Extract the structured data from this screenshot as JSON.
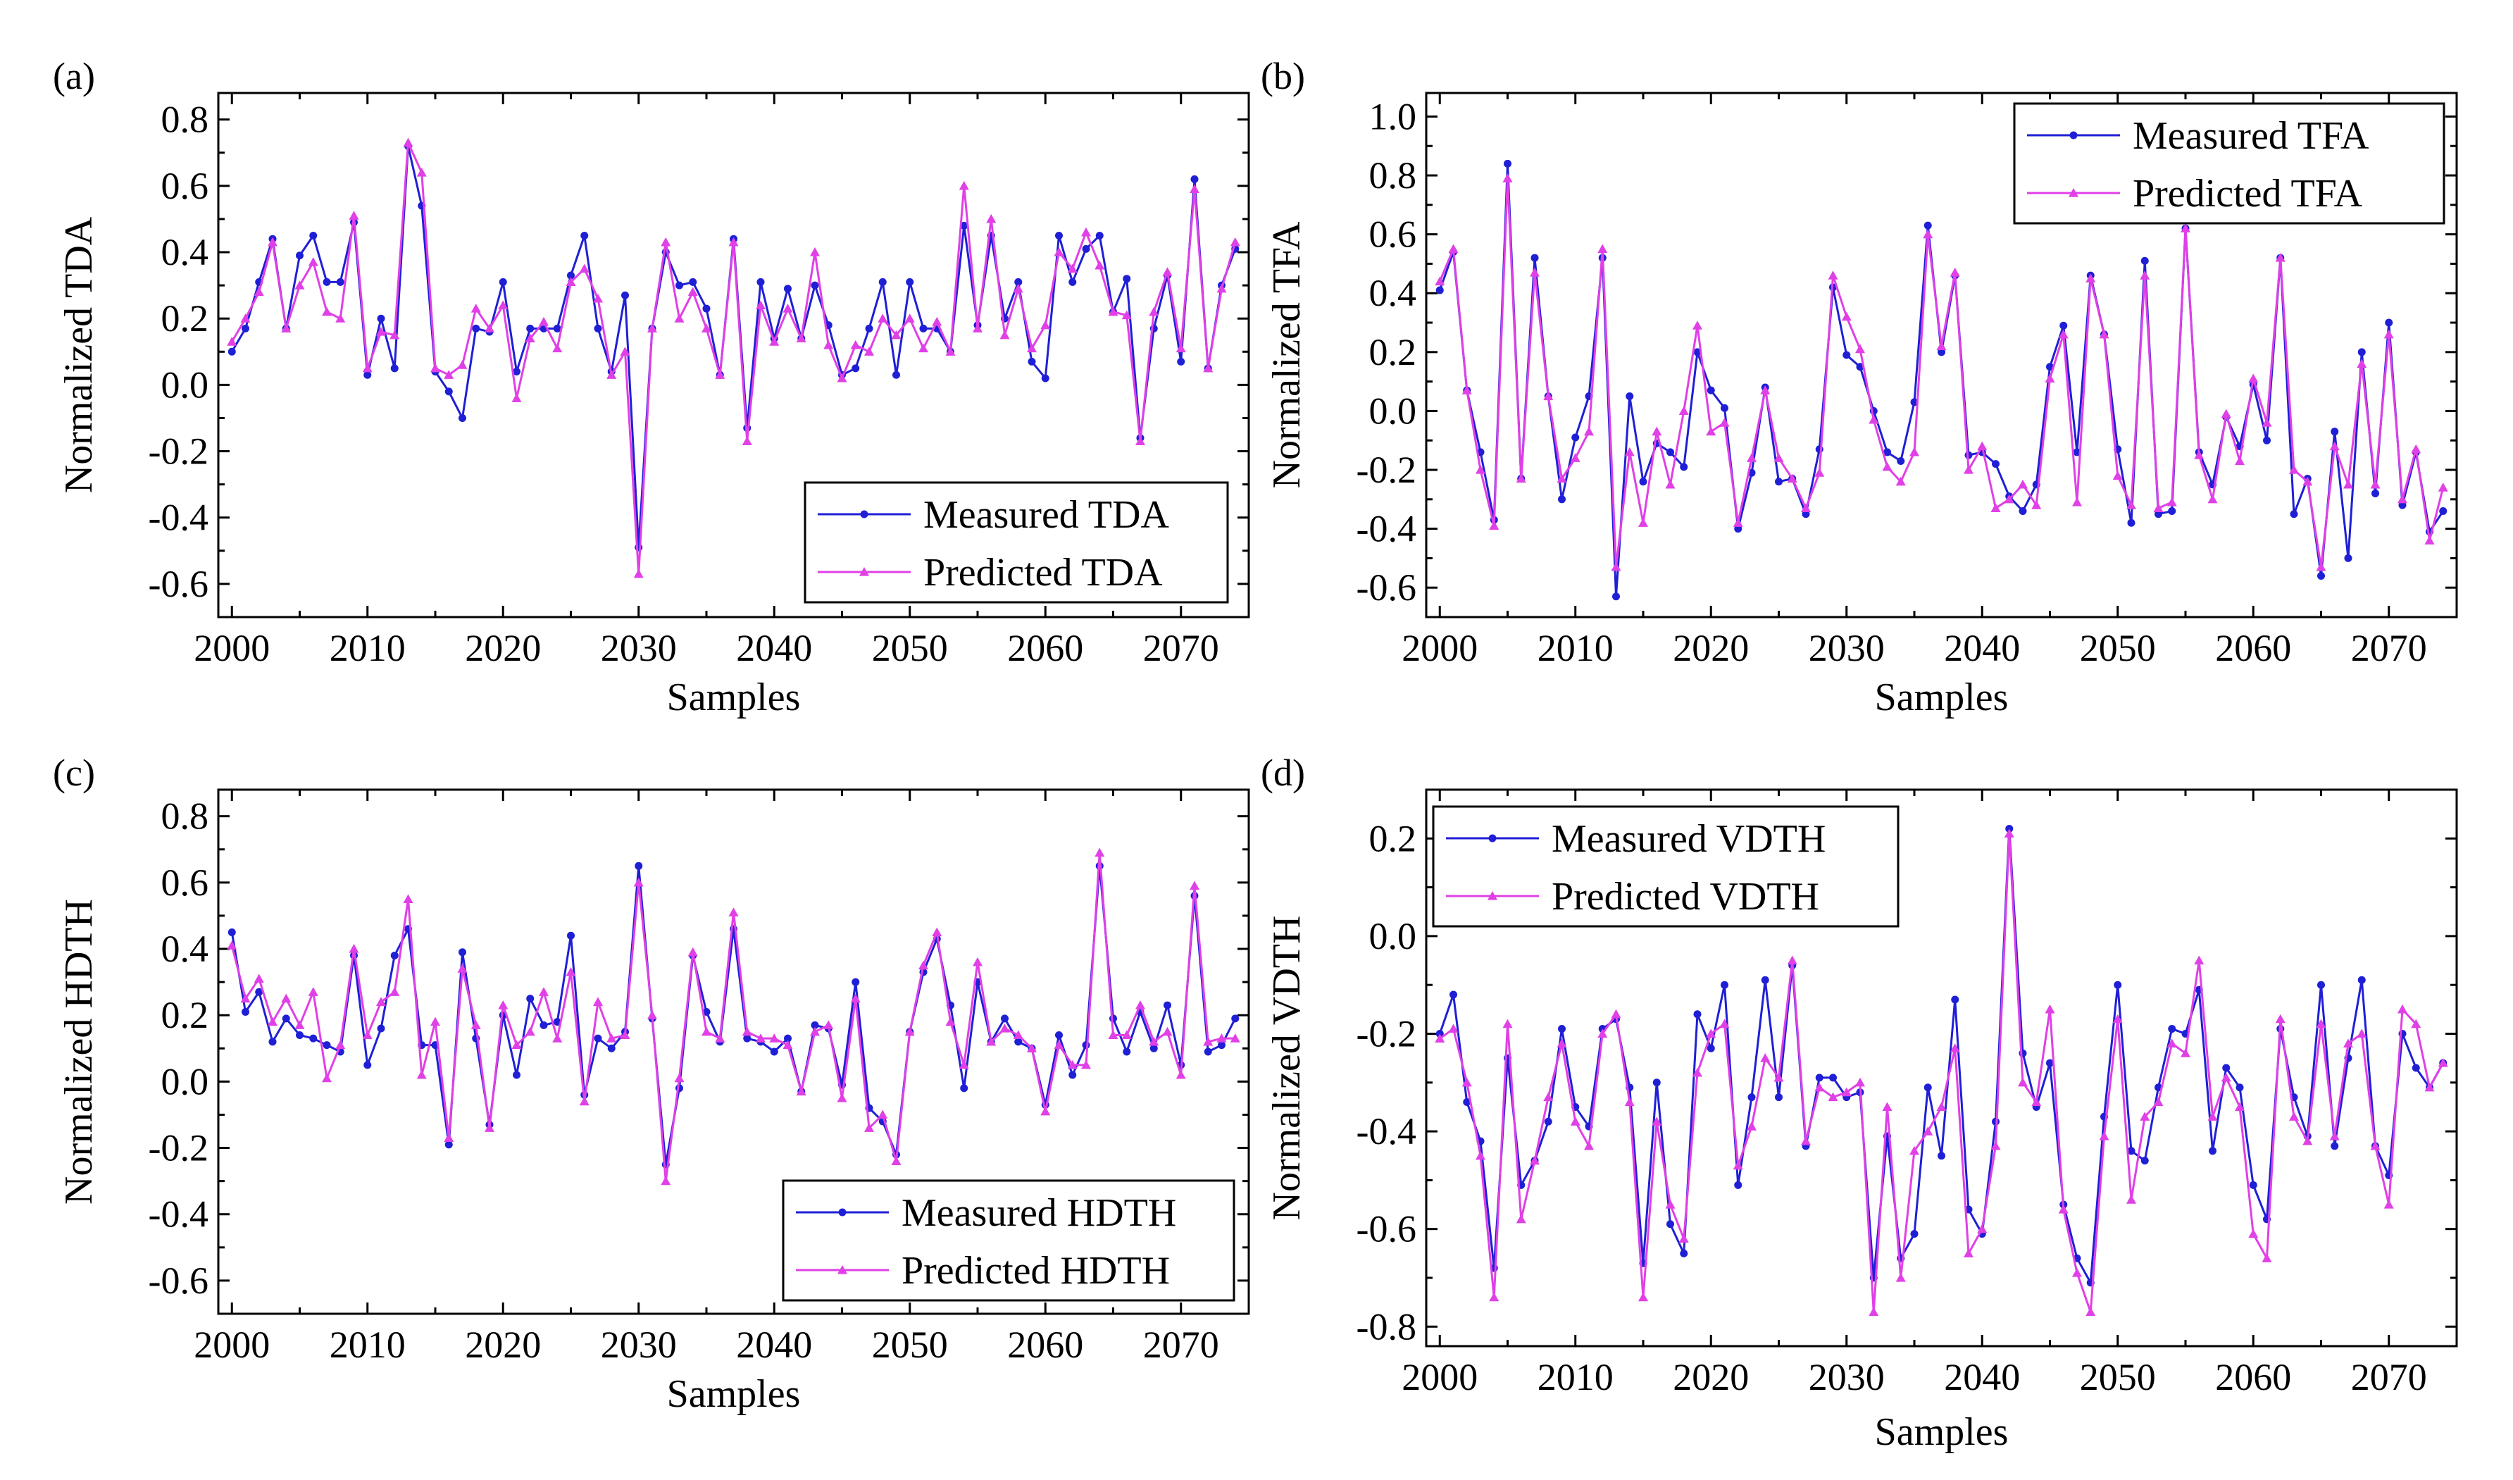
{
  "figure": {
    "colors": {
      "measured": "#1f1fd6",
      "predicted": "#e040e6"
    },
    "x_axis_title": "Samples"
  },
  "chart_data": [
    {
      "id": "a",
      "type": "line",
      "panel_label": "(a)",
      "title": "",
      "xlabel": "Samples",
      "ylabel": "Normalized TDA",
      "xlim": [
        1999,
        2075
      ],
      "ylim": [
        -0.7,
        0.88
      ],
      "xticks": [
        2000,
        2010,
        2020,
        2030,
        2040,
        2050,
        2060,
        2070
      ],
      "xtick_labels": [
        "2000",
        "2010",
        "2020",
        "2030",
        "2040",
        "2050",
        "2060",
        "2070"
      ],
      "yticks": [
        -0.6,
        -0.4,
        -0.2,
        0.0,
        0.2,
        0.4,
        0.6,
        0.8
      ],
      "ytick_labels": [
        "-0.6",
        "-0.4",
        "-0.2",
        "0.0",
        "0.2",
        "0.4",
        "0.6",
        "0.8"
      ],
      "legend_position": "bottom-right",
      "x_start": 2000,
      "series": [
        {
          "name": "Measured TDA",
          "marker": "circle",
          "values": [
            0.1,
            0.17,
            0.31,
            0.44,
            0.17,
            0.39,
            0.45,
            0.31,
            0.31,
            0.49,
            0.03,
            0.2,
            0.05,
            0.72,
            0.54,
            0.04,
            -0.02,
            -0.1,
            0.17,
            0.16,
            0.31,
            0.04,
            0.17,
            0.17,
            0.17,
            0.33,
            0.45,
            0.17,
            0.04,
            0.27,
            -0.49,
            0.17,
            0.4,
            0.3,
            0.31,
            0.23,
            0.03,
            0.44,
            -0.13,
            0.31,
            0.14,
            0.29,
            0.14,
            0.3,
            0.18,
            0.03,
            0.05,
            0.17,
            0.31,
            0.03,
            0.31,
            0.17,
            0.17,
            0.1,
            0.48,
            0.18,
            0.45,
            0.2,
            0.31,
            0.07,
            0.02,
            0.45,
            0.31,
            0.41,
            0.45,
            0.22,
            0.32,
            -0.16,
            0.17,
            0.33,
            0.07,
            0.62,
            0.05,
            0.3,
            0.41
          ]
        },
        {
          "name": "Predicted TDA",
          "marker": "triangle",
          "values": [
            0.13,
            0.2,
            0.28,
            0.43,
            0.17,
            0.3,
            0.37,
            0.22,
            0.2,
            0.51,
            0.05,
            0.16,
            0.15,
            0.73,
            0.64,
            0.05,
            0.03,
            0.06,
            0.23,
            0.17,
            0.24,
            -0.04,
            0.14,
            0.19,
            0.11,
            0.31,
            0.35,
            0.26,
            0.03,
            0.1,
            -0.57,
            0.17,
            0.43,
            0.2,
            0.28,
            0.17,
            0.03,
            0.43,
            -0.17,
            0.24,
            0.13,
            0.23,
            0.14,
            0.4,
            0.12,
            0.02,
            0.12,
            0.1,
            0.2,
            0.15,
            0.2,
            0.11,
            0.19,
            0.1,
            0.6,
            0.17,
            0.5,
            0.15,
            0.29,
            0.11,
            0.18,
            0.4,
            0.35,
            0.46,
            0.36,
            0.22,
            0.21,
            -0.17,
            0.22,
            0.34,
            0.11,
            0.59,
            0.05,
            0.29,
            0.43
          ]
        }
      ]
    },
    {
      "id": "b",
      "type": "line",
      "panel_label": "(b)",
      "title": "",
      "xlabel": "Samples",
      "ylabel": "Normalized TFA",
      "xlim": [
        1999,
        2075
      ],
      "ylim": [
        -0.7,
        1.08
      ],
      "xticks": [
        2000,
        2010,
        2020,
        2030,
        2040,
        2050,
        2060,
        2070
      ],
      "xtick_labels": [
        "2000",
        "2010",
        "2020",
        "2030",
        "2040",
        "2050",
        "2060",
        "2070"
      ],
      "yticks": [
        -0.6,
        -0.4,
        -0.2,
        0.0,
        0.2,
        0.4,
        0.6,
        0.8,
        1.0
      ],
      "ytick_labels": [
        "-0.6",
        "-0.4",
        "-0.2",
        "0.0",
        "0.2",
        "0.4",
        "0.6",
        "0.8",
        "1.0"
      ],
      "legend_position": "top-right",
      "x_start": 2000,
      "series": [
        {
          "name": "Measured TFA",
          "marker": "circle",
          "values": [
            0.41,
            0.54,
            0.07,
            -0.14,
            -0.37,
            0.84,
            -0.23,
            0.52,
            0.05,
            -0.3,
            -0.09,
            0.05,
            0.52,
            -0.63,
            0.05,
            -0.24,
            -0.11,
            -0.14,
            -0.19,
            0.2,
            0.07,
            0.01,
            -0.4,
            -0.21,
            0.08,
            -0.24,
            -0.23,
            -0.35,
            -0.13,
            0.42,
            0.19,
            0.15,
            0.0,
            -0.14,
            -0.17,
            0.03,
            0.63,
            0.2,
            0.46,
            -0.15,
            -0.14,
            -0.18,
            -0.29,
            -0.34,
            -0.25,
            0.15,
            0.29,
            -0.14,
            0.46,
            0.26,
            -0.13,
            -0.38,
            0.51,
            -0.35,
            -0.34,
            0.62,
            -0.14,
            -0.25,
            -0.02,
            -0.12,
            0.09,
            -0.1,
            0.52,
            -0.35,
            -0.23,
            -0.56,
            -0.07,
            -0.5,
            0.2,
            -0.28,
            0.3,
            -0.32,
            -0.14,
            -0.41,
            -0.34
          ]
        },
        {
          "name": "Predicted TFA",
          "marker": "triangle",
          "values": [
            0.44,
            0.55,
            0.07,
            -0.2,
            -0.39,
            0.79,
            -0.23,
            0.47,
            0.05,
            -0.23,
            -0.16,
            -0.07,
            0.55,
            -0.53,
            -0.14,
            -0.38,
            -0.07,
            -0.25,
            0.0,
            0.29,
            -0.07,
            -0.04,
            -0.38,
            -0.16,
            0.07,
            -0.16,
            -0.23,
            -0.33,
            -0.21,
            0.46,
            0.32,
            0.21,
            -0.03,
            -0.19,
            -0.24,
            -0.14,
            0.6,
            0.22,
            0.47,
            -0.2,
            -0.12,
            -0.33,
            -0.3,
            -0.25,
            -0.32,
            0.11,
            0.26,
            -0.31,
            0.45,
            0.26,
            -0.22,
            -0.32,
            0.46,
            -0.33,
            -0.31,
            0.62,
            -0.15,
            -0.3,
            -0.01,
            -0.17,
            0.11,
            -0.04,
            0.52,
            -0.2,
            -0.24,
            -0.53,
            -0.12,
            -0.25,
            0.16,
            -0.25,
            0.26,
            -0.3,
            -0.13,
            -0.44,
            -0.26
          ]
        }
      ]
    },
    {
      "id": "c",
      "type": "line",
      "panel_label": "(c)",
      "title": "",
      "xlabel": "Samples",
      "ylabel": "Normalized HDTH",
      "xlim": [
        1999,
        2075
      ],
      "ylim": [
        -0.7,
        0.88
      ],
      "xticks": [
        2000,
        2010,
        2020,
        2030,
        2040,
        2050,
        2060,
        2070
      ],
      "xtick_labels": [
        "2000",
        "2010",
        "2020",
        "2030",
        "2040",
        "2050",
        "2060",
        "2070"
      ],
      "yticks": [
        -0.6,
        -0.4,
        -0.2,
        0.0,
        0.2,
        0.4,
        0.6,
        0.8
      ],
      "ytick_labels": [
        "-0.6",
        "-0.4",
        "-0.2",
        "0.0",
        "0.2",
        "0.4",
        "0.6",
        "0.8"
      ],
      "legend_position": "bottom-right",
      "x_start": 2000,
      "series": [
        {
          "name": "Measured HDTH",
          "marker": "circle",
          "values": [
            0.45,
            0.21,
            0.27,
            0.12,
            0.19,
            0.14,
            0.13,
            0.11,
            0.09,
            0.38,
            0.05,
            0.16,
            0.38,
            0.46,
            0.11,
            0.11,
            -0.19,
            0.39,
            0.13,
            -0.13,
            0.2,
            0.02,
            0.25,
            0.17,
            0.18,
            0.44,
            -0.04,
            0.13,
            0.1,
            0.15,
            0.65,
            0.19,
            -0.25,
            -0.02,
            0.38,
            0.21,
            0.12,
            0.46,
            0.13,
            0.12,
            0.09,
            0.13,
            -0.03,
            0.17,
            0.16,
            -0.01,
            0.3,
            -0.08,
            -0.12,
            -0.22,
            0.15,
            0.33,
            0.43,
            0.23,
            -0.02,
            0.3,
            0.12,
            0.19,
            0.12,
            0.1,
            -0.07,
            0.14,
            0.02,
            0.11,
            0.65,
            0.19,
            0.09,
            0.21,
            0.1,
            0.23,
            0.05,
            0.56,
            0.09,
            0.11,
            0.19
          ]
        },
        {
          "name": "Predicted HDTH",
          "marker": "triangle",
          "values": [
            0.41,
            0.25,
            0.31,
            0.18,
            0.25,
            0.17,
            0.27,
            0.01,
            0.11,
            0.4,
            0.14,
            0.24,
            0.27,
            0.55,
            0.02,
            0.18,
            -0.17,
            0.34,
            0.17,
            -0.14,
            0.23,
            0.11,
            0.15,
            0.27,
            0.13,
            0.33,
            -0.06,
            0.24,
            0.13,
            0.14,
            0.6,
            0.2,
            -0.3,
            0.01,
            0.39,
            0.15,
            0.13,
            0.51,
            0.15,
            0.13,
            0.13,
            0.11,
            -0.03,
            0.15,
            0.17,
            -0.05,
            0.25,
            -0.14,
            -0.1,
            -0.24,
            0.15,
            0.35,
            0.45,
            0.18,
            0.05,
            0.36,
            0.12,
            0.16,
            0.14,
            0.1,
            -0.09,
            0.11,
            0.05,
            0.05,
            0.69,
            0.14,
            0.14,
            0.23,
            0.12,
            0.15,
            0.02,
            0.59,
            0.12,
            0.13,
            0.13
          ]
        }
      ]
    },
    {
      "id": "d",
      "type": "line",
      "panel_label": "(d)",
      "title": "",
      "xlabel": "Samples",
      "ylabel": "Normalized VDTH",
      "xlim": [
        1999,
        2075
      ],
      "ylim": [
        -0.84,
        0.3
      ],
      "xticks": [
        2000,
        2010,
        2020,
        2030,
        2040,
        2050,
        2060,
        2070
      ],
      "xtick_labels": [
        "2000",
        "2010",
        "2020",
        "2030",
        "2040",
        "2050",
        "2060",
        "2070"
      ],
      "yticks": [
        -0.8,
        -0.6,
        -0.4,
        -0.2,
        0.0,
        0.2
      ],
      "ytick_labels": [
        "-0.8",
        "-0.6",
        "-0.4",
        "-0.2",
        "0.0",
        "0.2"
      ],
      "legend_position": "top-left",
      "x_start": 2000,
      "series": [
        {
          "name": "Measured VDTH",
          "marker": "circle",
          "values": [
            -0.2,
            -0.12,
            -0.34,
            -0.42,
            -0.68,
            -0.25,
            -0.51,
            -0.46,
            -0.38,
            -0.19,
            -0.35,
            -0.39,
            -0.19,
            -0.17,
            -0.31,
            -0.67,
            -0.3,
            -0.59,
            -0.65,
            -0.16,
            -0.23,
            -0.1,
            -0.51,
            -0.33,
            -0.09,
            -0.33,
            -0.06,
            -0.43,
            -0.29,
            -0.29,
            -0.33,
            -0.32,
            -0.7,
            -0.41,
            -0.66,
            -0.61,
            -0.31,
            -0.45,
            -0.13,
            -0.56,
            -0.61,
            -0.38,
            0.22,
            -0.24,
            -0.35,
            -0.26,
            -0.55,
            -0.66,
            -0.71,
            -0.37,
            -0.1,
            -0.44,
            -0.46,
            -0.31,
            -0.19,
            -0.2,
            -0.11,
            -0.44,
            -0.27,
            -0.31,
            -0.51,
            -0.58,
            -0.19,
            -0.33,
            -0.41,
            -0.1,
            -0.43,
            -0.25,
            -0.09,
            -0.43,
            -0.49,
            -0.2,
            -0.27,
            -0.31,
            -0.26
          ]
        },
        {
          "name": "Predicted VDTH",
          "marker": "triangle",
          "values": [
            -0.21,
            -0.19,
            -0.3,
            -0.45,
            -0.74,
            -0.18,
            -0.58,
            -0.46,
            -0.33,
            -0.22,
            -0.38,
            -0.43,
            -0.2,
            -0.16,
            -0.34,
            -0.74,
            -0.38,
            -0.55,
            -0.62,
            -0.28,
            -0.2,
            -0.18,
            -0.47,
            -0.39,
            -0.25,
            -0.29,
            -0.05,
            -0.42,
            -0.31,
            -0.33,
            -0.32,
            -0.3,
            -0.77,
            -0.35,
            -0.7,
            -0.44,
            -0.4,
            -0.35,
            -0.23,
            -0.65,
            -0.6,
            -0.43,
            0.21,
            -0.3,
            -0.34,
            -0.15,
            -0.56,
            -0.69,
            -0.77,
            -0.41,
            -0.17,
            -0.54,
            -0.37,
            -0.34,
            -0.22,
            -0.24,
            -0.05,
            -0.37,
            -0.29,
            -0.35,
            -0.61,
            -0.66,
            -0.17,
            -0.37,
            -0.42,
            -0.18,
            -0.41,
            -0.22,
            -0.2,
            -0.43,
            -0.55,
            -0.15,
            -0.18,
            -0.31,
            -0.26
          ]
        }
      ]
    }
  ]
}
